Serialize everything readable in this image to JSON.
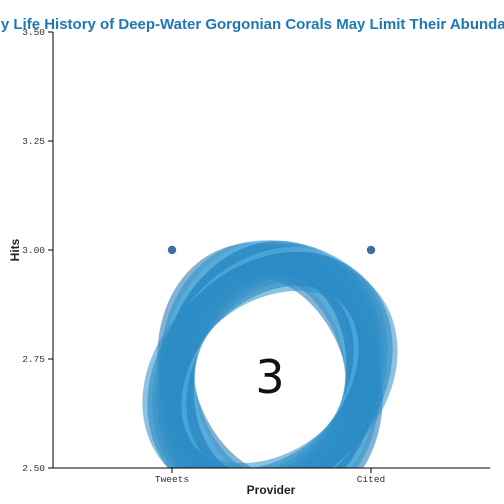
{
  "chart_data": {
    "type": "scatter",
    "title": "Early Life History of Deep-Water Gorgonian Corals May Limit Their Abundance",
    "xlabel": "Provider",
    "ylabel": "Hits",
    "categories": [
      "Tweets",
      "Cited"
    ],
    "series": [
      {
        "values": [
          3.0,
          3.0
        ]
      }
    ],
    "ylim": [
      2.5,
      3.5
    ],
    "yticks": [
      "2.50",
      "2.75",
      "3.00",
      "3.25",
      "3.50"
    ],
    "grid": false,
    "point_color": "#3a6ea5"
  },
  "badge": {
    "score": "3",
    "ring_colors": [
      "#1b75b4",
      "#2c8fc9",
      "#5ab7e3"
    ]
  }
}
